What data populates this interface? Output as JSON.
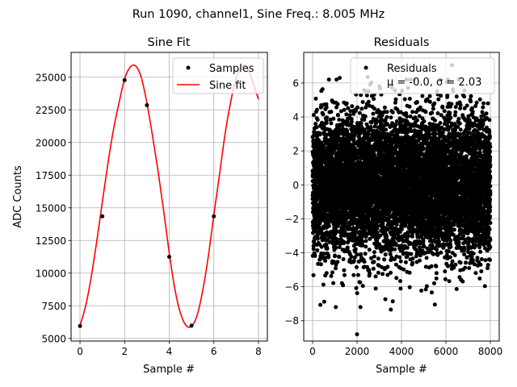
{
  "suptitle": "Run 1090, channel1, Sine Freq.: 8.005 MHz",
  "chart_data": [
    {
      "type": "line",
      "title": "Sine Fit",
      "xlabel": "Sample #",
      "ylabel": "ADC Counts",
      "xlim": [
        -0.4,
        8.4
      ],
      "ylim": [
        4800,
        26900
      ],
      "xticks": [
        0,
        2,
        4,
        6,
        8
      ],
      "yticks": [
        5000,
        7500,
        10000,
        12500,
        15000,
        17500,
        20000,
        22500,
        25000
      ],
      "grid": true,
      "legend_position": "top-right",
      "series": [
        {
          "name": "Samples",
          "style": "points",
          "color": "#000000",
          "x": [
            0,
            1,
            2,
            3,
            4,
            5,
            6
          ],
          "y": [
            5950,
            14350,
            24780,
            22860,
            11250,
            5980,
            14350
          ]
        },
        {
          "name": "Sine fit",
          "style": "line",
          "color": "#ff0000",
          "x": [
            0,
            0.25,
            0.5,
            0.75,
            1,
            1.25,
            1.5,
            1.75,
            2,
            2.25,
            2.5,
            2.75,
            3,
            3.25,
            3.5,
            3.75,
            4,
            4.25,
            4.5,
            4.75,
            5,
            5.25,
            5.5,
            5.75,
            6,
            6.25,
            6.5,
            6.75,
            7,
            7.25,
            7.5,
            7.75,
            8
          ],
          "y": [
            6000,
            7460,
            9700,
            12450,
            15450,
            18380,
            21000,
            23050,
            24880,
            25780,
            25850,
            24970,
            23010,
            20530,
            17800,
            14770,
            11550,
            8800,
            6950,
            6000,
            5930,
            6770,
            8650,
            11250,
            14450,
            17480,
            20600,
            23060,
            24900,
            25830,
            25750,
            24600,
            23300
          ]
        }
      ]
    },
    {
      "type": "scatter",
      "title": "Residuals",
      "xlabel": "Sample #",
      "xlim": [
        -400,
        8400
      ],
      "ylim": [
        -9.2,
        7.8
      ],
      "xticks": [
        0,
        2000,
        4000,
        6000,
        8000
      ],
      "yticks": [
        -8,
        -6,
        -4,
        -2,
        0,
        2,
        4,
        6
      ],
      "grid": true,
      "legend_position": "top-right",
      "series": [
        {
          "name": "Residuals\nμ = -0.0, σ = 2.03",
          "color": "#000000",
          "distribution": {
            "mean": -0.0,
            "std": 2.03,
            "count": 8000,
            "x_range": [
              0,
              8000
            ]
          },
          "notable_points": [
            [
              2000,
              -8.8
            ],
            [
              6270,
              7.05
            ],
            [
              2480,
              6.35
            ],
            [
              1220,
              6.3
            ],
            [
              3520,
              -7.35
            ],
            [
              5500,
              -7.05
            ]
          ]
        }
      ]
    }
  ]
}
